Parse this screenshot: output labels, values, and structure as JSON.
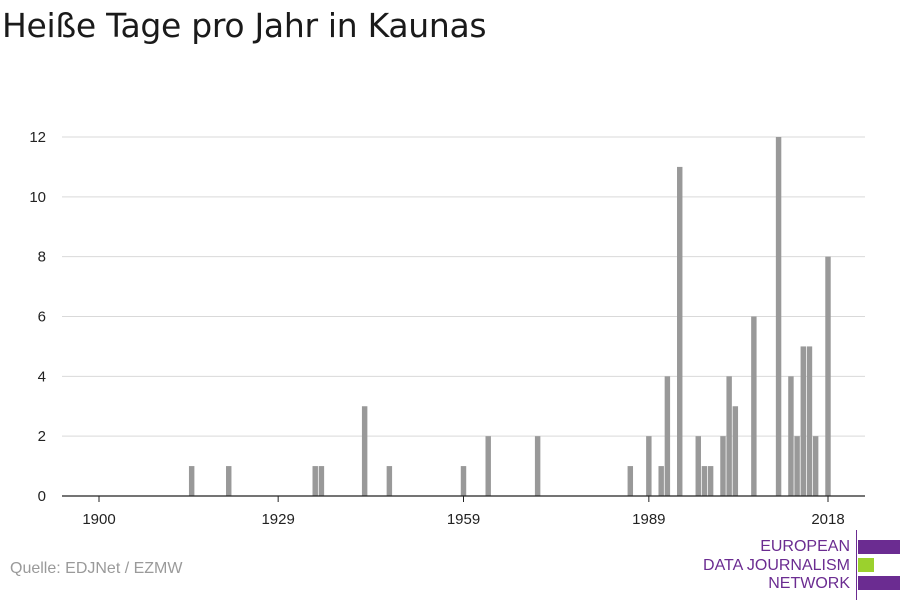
{
  "title": "Heiße Tage pro Jahr in Kaunas",
  "source": "Quelle: EDJNet / EZMW",
  "logo": {
    "line1": "EUROPEAN",
    "line2": "DATA JOURNALISM",
    "line3": "NETWORK",
    "colors": [
      "#6b2c91",
      "#9bd12d",
      "#6b2c91"
    ]
  },
  "chart_data": {
    "type": "bar",
    "title": "Heiße Tage pro Jahr in Kaunas",
    "xlabel": "",
    "ylabel": "",
    "xlim": [
      1900,
      2018
    ],
    "ylim": [
      0,
      12
    ],
    "x_ticks": [
      1900,
      1929,
      1959,
      1989,
      2018
    ],
    "y_ticks": [
      0,
      2,
      4,
      6,
      8,
      10,
      12
    ],
    "grid": true,
    "bar_color": "#999999",
    "points": [
      {
        "x": 1915,
        "y": 1
      },
      {
        "x": 1921,
        "y": 1
      },
      {
        "x": 1935,
        "y": 1
      },
      {
        "x": 1936,
        "y": 1
      },
      {
        "x": 1943,
        "y": 3
      },
      {
        "x": 1947,
        "y": 1
      },
      {
        "x": 1959,
        "y": 1
      },
      {
        "x": 1963,
        "y": 2
      },
      {
        "x": 1971,
        "y": 2
      },
      {
        "x": 1986,
        "y": 1
      },
      {
        "x": 1989,
        "y": 2
      },
      {
        "x": 1991,
        "y": 1
      },
      {
        "x": 1992,
        "y": 4
      },
      {
        "x": 1994,
        "y": 11
      },
      {
        "x": 1997,
        "y": 2
      },
      {
        "x": 1998,
        "y": 1
      },
      {
        "x": 1999,
        "y": 1
      },
      {
        "x": 2001,
        "y": 2
      },
      {
        "x": 2002,
        "y": 4
      },
      {
        "x": 2003,
        "y": 3
      },
      {
        "x": 2006,
        "y": 6
      },
      {
        "x": 2010,
        "y": 12
      },
      {
        "x": 2012,
        "y": 4
      },
      {
        "x": 2013,
        "y": 2
      },
      {
        "x": 2014,
        "y": 5
      },
      {
        "x": 2015,
        "y": 5
      },
      {
        "x": 2016,
        "y": 2
      },
      {
        "x": 2018,
        "y": 8
      }
    ]
  }
}
